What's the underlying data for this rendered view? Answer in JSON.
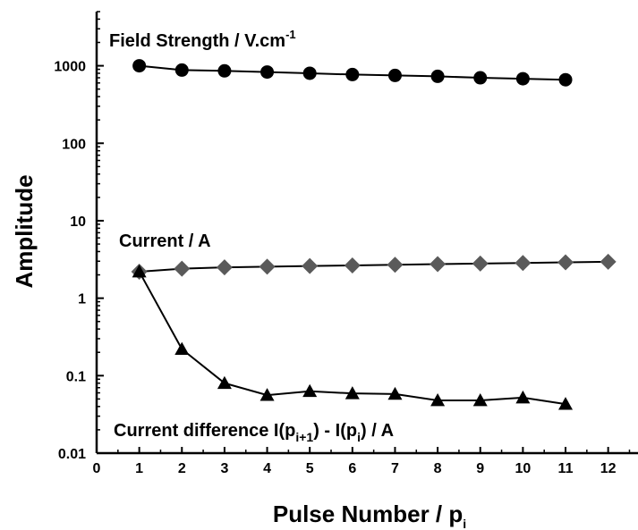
{
  "chart_data": {
    "type": "scatter",
    "x_axis": {
      "label_main": "Pulse Number / p",
      "label_subscript": "i",
      "range": [
        0,
        12.7
      ],
      "ticks": [
        0,
        1,
        2,
        3,
        4,
        5,
        6,
        7,
        8,
        9,
        10,
        11,
        12
      ]
    },
    "y_axis": {
      "label": "Amplitude",
      "scale": "log",
      "range": [
        0.01,
        5000
      ],
      "ticks": [
        0.01,
        0.1,
        1,
        10,
        100,
        1000
      ],
      "tick_labels": [
        "0.01",
        "0.1",
        "1",
        "10",
        "100",
        "1000"
      ]
    },
    "series": [
      {
        "key": "field",
        "label_parts": [
          {
            "t": "Field Strength / V.cm"
          },
          {
            "t": "-1",
            "sup": true
          }
        ],
        "marker": "circle",
        "color": "#000000",
        "x": [
          1,
          2,
          3,
          4,
          5,
          6,
          7,
          8,
          9,
          10,
          11
        ],
        "y": [
          1000,
          880,
          860,
          830,
          800,
          770,
          750,
          730,
          700,
          680,
          660
        ]
      },
      {
        "key": "current",
        "label_parts": [
          {
            "t": "Current / A"
          }
        ],
        "marker": "diamond",
        "color": "#5a5a5a",
        "x": [
          1,
          2,
          3,
          4,
          5,
          6,
          7,
          8,
          9,
          10,
          11,
          12
        ],
        "y": [
          2.2,
          2.4,
          2.5,
          2.55,
          2.6,
          2.65,
          2.7,
          2.75,
          2.8,
          2.85,
          2.9,
          2.95
        ]
      },
      {
        "key": "diff",
        "label_parts": [
          {
            "t": "Current difference I(p"
          },
          {
            "t": "i+1",
            "sub": true
          },
          {
            "t": ") - I(p"
          },
          {
            "t": "i",
            "sub": true
          },
          {
            "t": ") / A"
          }
        ],
        "marker": "triangle",
        "color": "#000000",
        "x": [
          1,
          2,
          3,
          4,
          5,
          6,
          7,
          8,
          9,
          10,
          11
        ],
        "y": [
          2.2,
          0.22,
          0.08,
          0.056,
          0.063,
          0.059,
          0.058,
          0.048,
          0.048,
          0.052,
          0.043
        ]
      }
    ],
    "grid": false,
    "legend": "none (series labelled directly on the plot)"
  }
}
